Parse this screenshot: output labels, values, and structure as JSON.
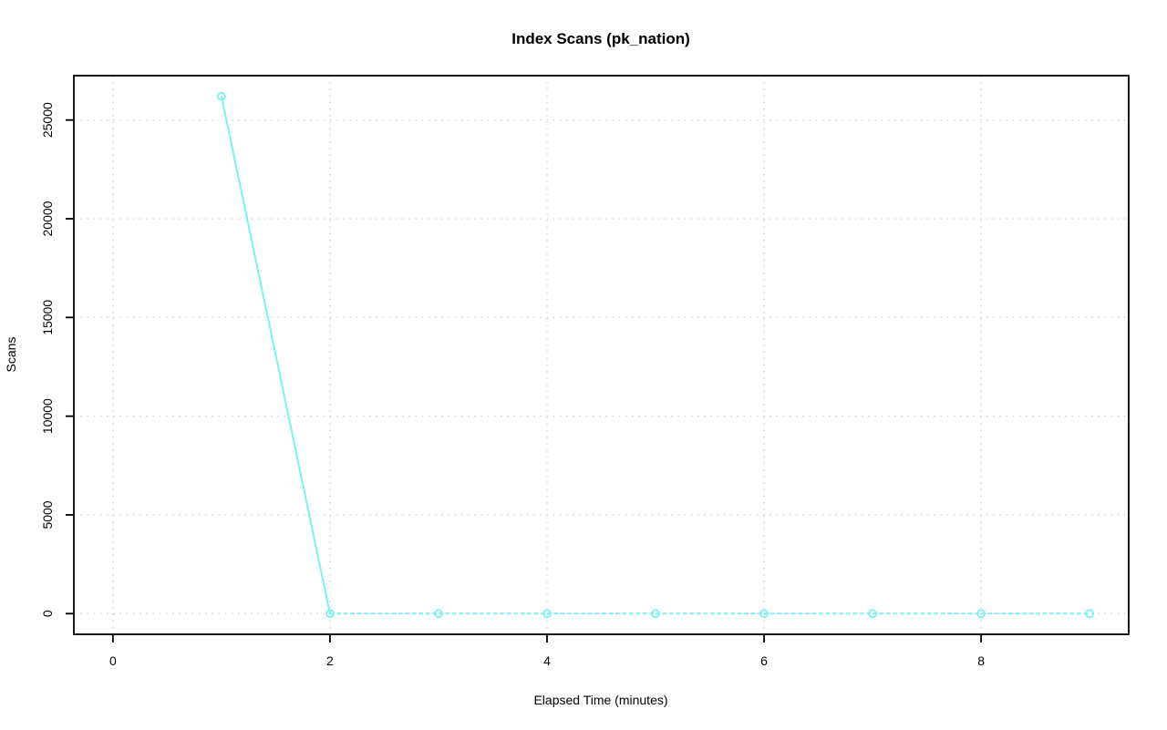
{
  "chart_data": {
    "type": "line",
    "title": "Index Scans (pk_nation)",
    "xlabel": "Elapsed Time (minutes)",
    "ylabel": "Scans",
    "x": [
      1,
      2,
      3,
      4,
      5,
      6,
      7,
      8,
      9
    ],
    "values": [
      26200,
      0,
      0,
      0,
      0,
      0,
      0,
      0,
      0
    ],
    "x_ticks": [
      0,
      2,
      4,
      6,
      8
    ],
    "y_ticks": [
      0,
      5000,
      10000,
      15000,
      20000,
      25000
    ],
    "xlim": [
      -0.36,
      9.36
    ],
    "ylim": [
      -1048,
      27248
    ],
    "grid": true,
    "legend_position": "none",
    "marker": "open-circle",
    "colors": {
      "series": "#7df0f0",
      "grid": "#d6d6d6",
      "axis": "#000000",
      "text": "#000000",
      "background": "#ffffff"
    }
  }
}
